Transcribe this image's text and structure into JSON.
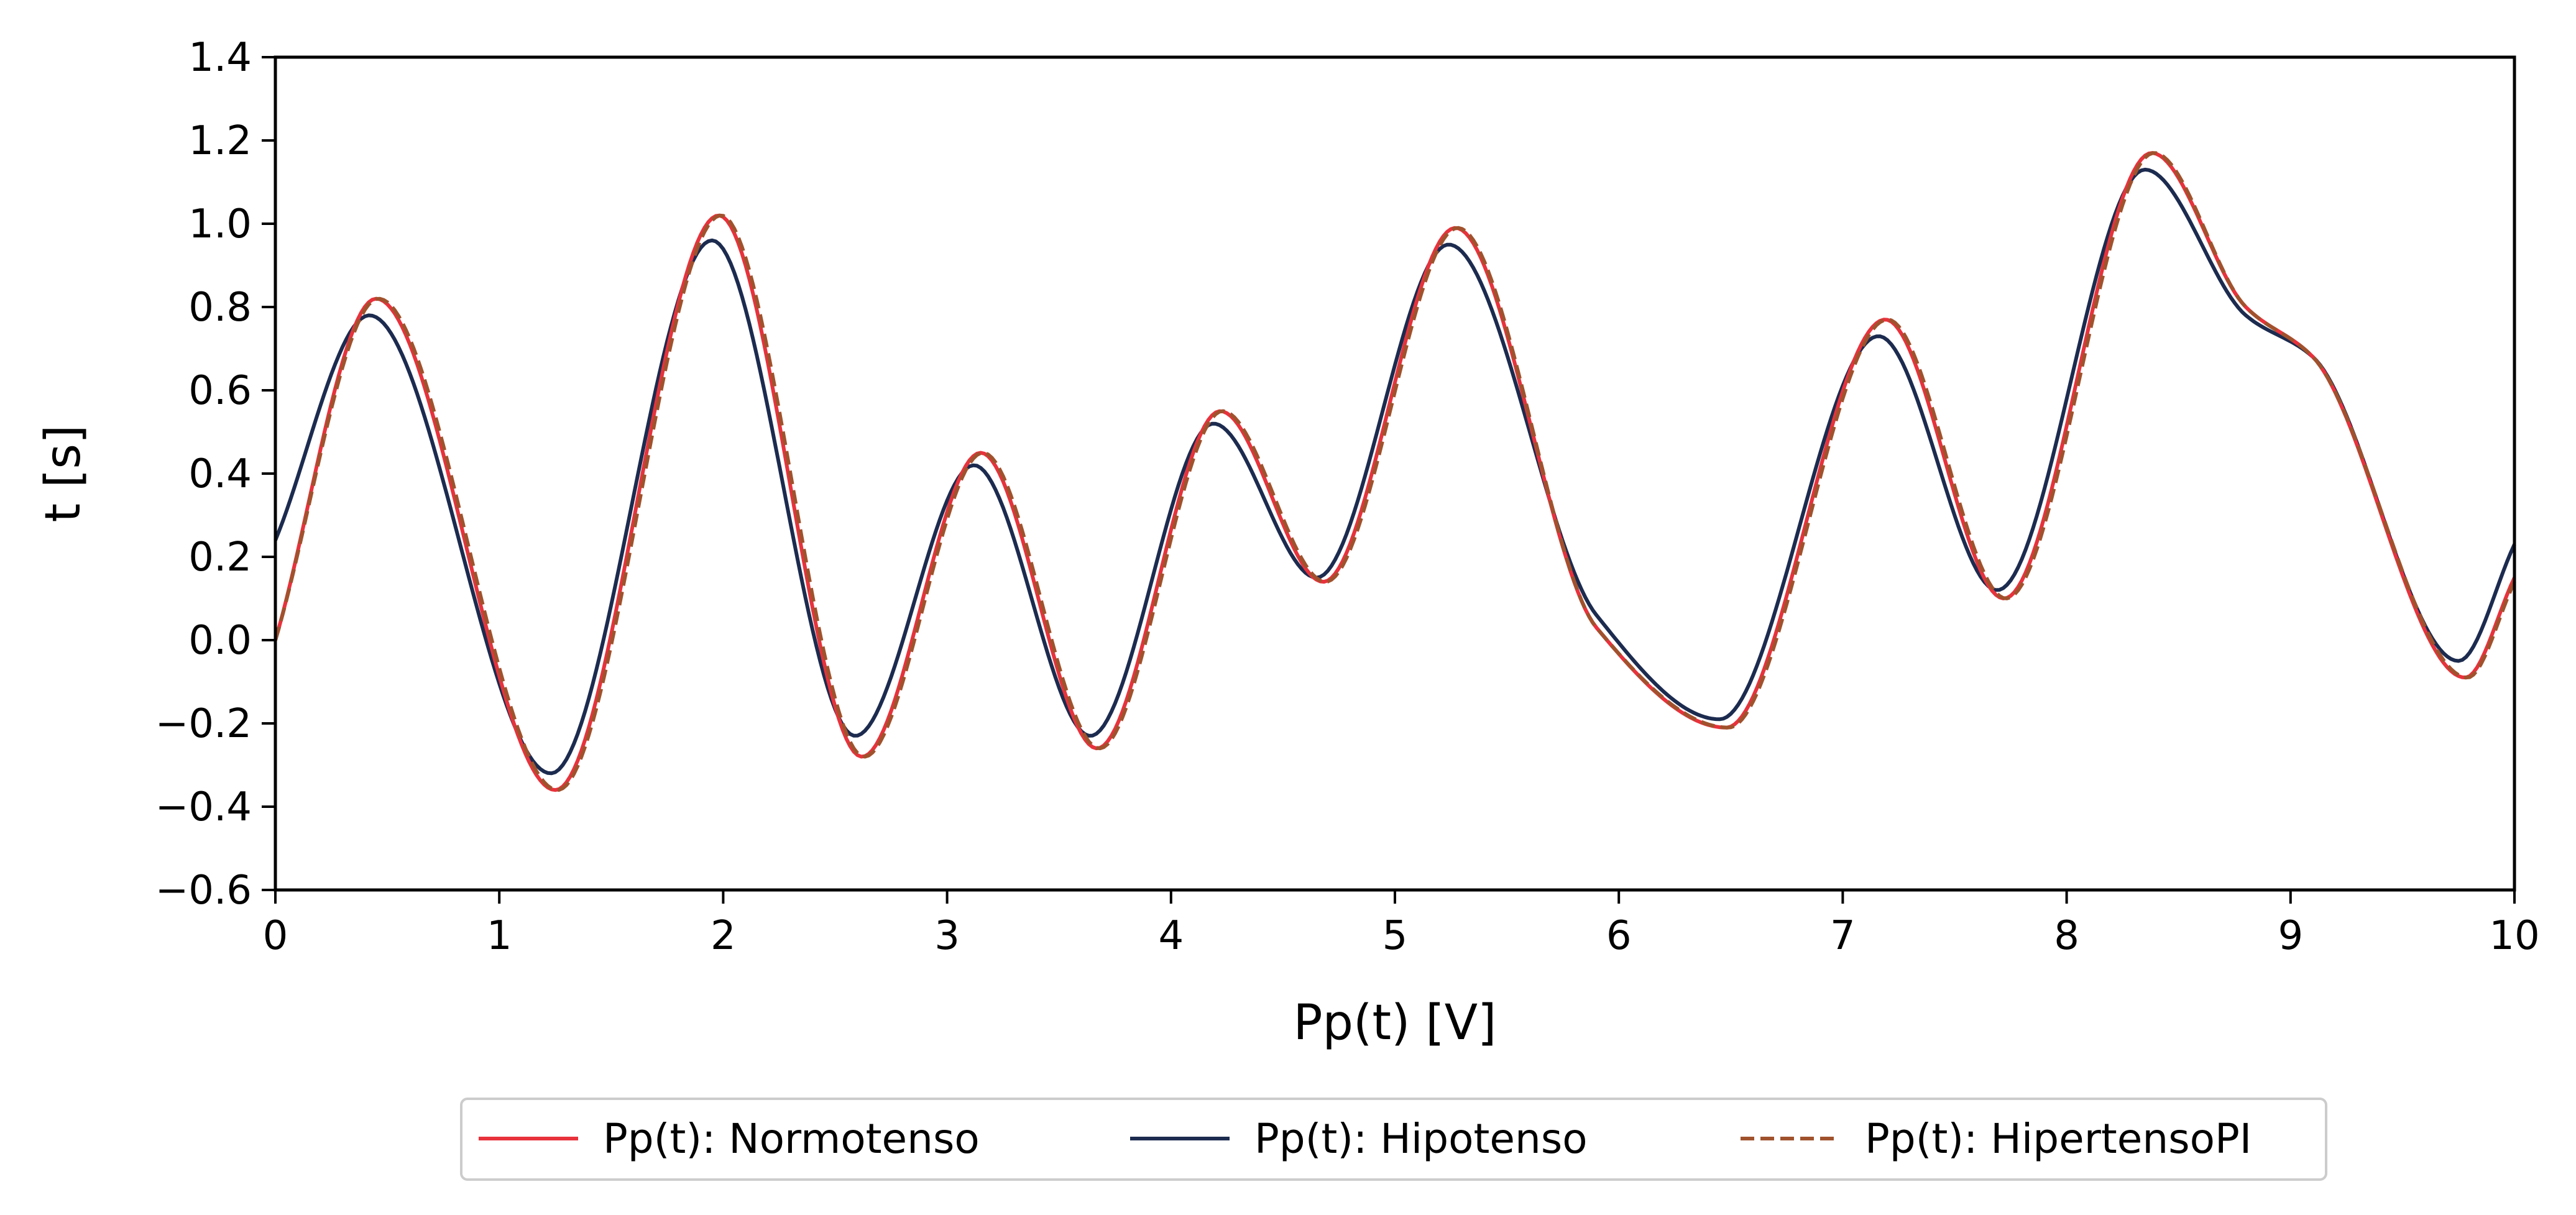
{
  "chart_data": {
    "type": "line",
    "title": "",
    "xlabel": "Pp(t) [V]",
    "ylabel": "t [s]",
    "xlim": [
      0,
      10
    ],
    "ylim": [
      -0.6,
      1.4
    ],
    "xticks": [
      0,
      1,
      2,
      3,
      4,
      5,
      6,
      7,
      8,
      9,
      10
    ],
    "xtick_labels": [
      "0",
      "1",
      "2",
      "3",
      "4",
      "5",
      "6",
      "7",
      "8",
      "9",
      "10"
    ],
    "yticks": [
      -0.6,
      -0.4,
      -0.2,
      0.0,
      0.2,
      0.4,
      0.6,
      0.8,
      1.0,
      1.2,
      1.4
    ],
    "ytick_labels": [
      "−0.6",
      "−0.4",
      "−0.2",
      "0.0",
      "0.2",
      "0.4",
      "0.6",
      "0.8",
      "1.0",
      "1.2",
      "1.4"
    ],
    "grid": false,
    "legend_position": "bottom-center",
    "series": [
      {
        "name": "Pp(t): Normotenso",
        "color": "#e8323c",
        "style": "solid",
        "x": [
          0,
          0.45,
          1.25,
          1.98,
          2.62,
          3.15,
          3.67,
          4.22,
          4.68,
          5.27,
          5.9,
          6.48,
          7.19,
          7.72,
          8.38,
          8.8,
          9.1,
          9.78,
          10
        ],
        "y": [
          0,
          0.82,
          -0.36,
          1.02,
          -0.28,
          0.45,
          -0.26,
          0.55,
          0.14,
          0.99,
          0.03,
          -0.21,
          0.77,
          0.1,
          1.17,
          0.8,
          0.68,
          -0.09,
          0.15
        ]
      },
      {
        "name": "Pp(t): Hipotenso",
        "color": "#1c2b4f",
        "style": "solid",
        "x": [
          0,
          0.42,
          1.23,
          1.95,
          2.59,
          3.12,
          3.64,
          4.19,
          4.65,
          5.24,
          5.9,
          6.45,
          7.16,
          7.69,
          8.35,
          8.8,
          9.1,
          9.75,
          10
        ],
        "y": [
          0.24,
          0.78,
          -0.32,
          0.96,
          -0.23,
          0.42,
          -0.23,
          0.52,
          0.15,
          0.95,
          0.06,
          -0.19,
          0.73,
          0.12,
          1.13,
          0.78,
          0.68,
          -0.05,
          0.23
        ]
      },
      {
        "name": "Pp(t): HipertensoPI",
        "color": "#a0522d",
        "style": "dashed",
        "x": [
          0,
          0.46,
          1.26,
          1.99,
          2.63,
          3.16,
          3.68,
          4.23,
          4.69,
          5.28,
          5.9,
          6.49,
          7.2,
          7.73,
          8.39,
          8.8,
          9.1,
          9.79,
          10
        ],
        "y": [
          0,
          0.82,
          -0.36,
          1.02,
          -0.28,
          0.45,
          -0.26,
          0.55,
          0.14,
          0.99,
          0.03,
          -0.21,
          0.77,
          0.1,
          1.17,
          0.8,
          0.68,
          -0.09,
          0.14
        ]
      }
    ]
  }
}
